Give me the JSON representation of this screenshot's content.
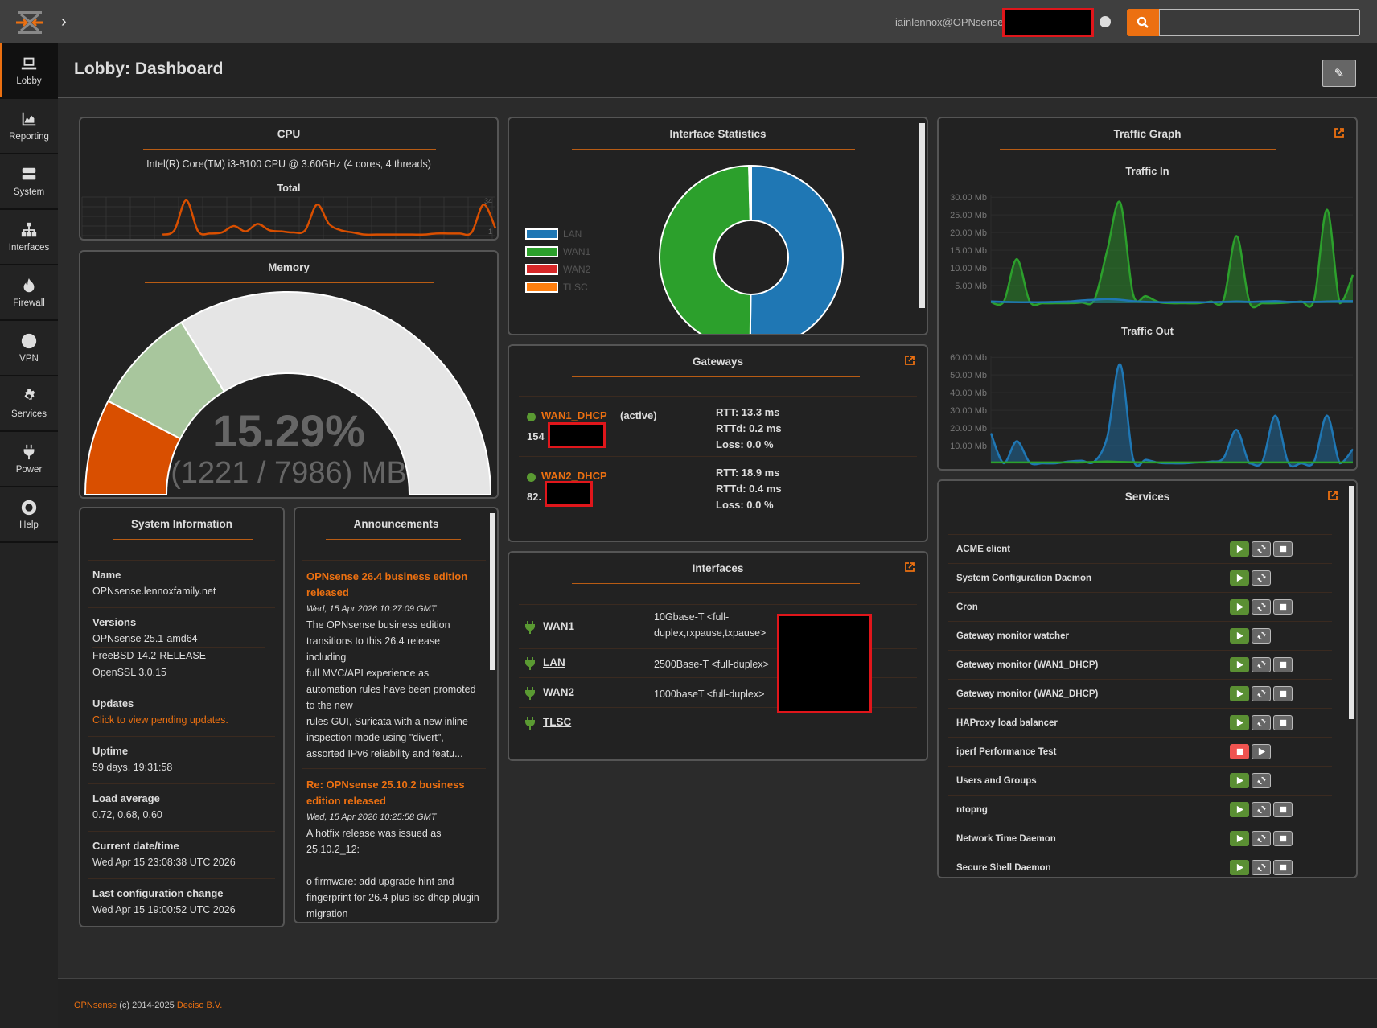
{
  "topbar": {
    "user": "iainlennox@OPNsense",
    "search_value": ""
  },
  "sidebar": {
    "items": [
      {
        "label": "Lobby",
        "icon": "laptop-icon",
        "active": true
      },
      {
        "label": "Reporting",
        "icon": "area-chart-icon"
      },
      {
        "label": "System",
        "icon": "server-icon"
      },
      {
        "label": "Interfaces",
        "icon": "sitemap-icon"
      },
      {
        "label": "Firewall",
        "icon": "fire-icon"
      },
      {
        "label": "VPN",
        "icon": "globe-icon"
      },
      {
        "label": "Services",
        "icon": "gear-icon"
      },
      {
        "label": "Power",
        "icon": "plug-icon"
      },
      {
        "label": "Help",
        "icon": "life-ring-icon"
      }
    ]
  },
  "page": {
    "title": "Lobby: Dashboard"
  },
  "colors": {
    "accent": "#ec7011",
    "lan": "#1f77b4",
    "wan1": "#2ca02c",
    "wan2": "#d62728",
    "tlsc": "#ff7f0e",
    "mem_used": "#d94f00",
    "mem_second": "#a8c69d",
    "mem_free": "#e5e5e5",
    "running": "#5a8f33",
    "stopped": "#ef5350"
  },
  "cpu": {
    "title": "CPU",
    "model": "Intel(R) Core(TM) i3-8100 CPU @ 3.60GHz (4 cores, 4 threads)",
    "graph_title": "Total",
    "max_label": "34",
    "min_label": "1"
  },
  "memory": {
    "title": "Memory",
    "percent": "15.29%",
    "detail": "(1221 / 7986) MB",
    "used_pct": 15.29,
    "second_pct": 17.1
  },
  "sysinfo": {
    "title": "System Information",
    "rows": [
      {
        "label": "Name",
        "values": [
          "OPNsense.lennoxfamily.net"
        ]
      },
      {
        "label": "Versions",
        "values": [
          "OPNsense 25.1-amd64",
          "FreeBSD 14.2-RELEASE",
          "OpenSSL 3.0.15"
        ]
      },
      {
        "label": "Updates",
        "link": "Click to view pending updates."
      },
      {
        "label": "Uptime",
        "values": [
          "59 days, 19:31:58"
        ]
      },
      {
        "label": "Load average",
        "values": [
          "0.72, 0.68, 0.60"
        ]
      },
      {
        "label": "Current date/time",
        "values": [
          "Wed Apr 15 23:08:38 UTC 2026"
        ]
      },
      {
        "label": "Last configuration change",
        "values": [
          "Wed Apr 15 19:00:52 UTC 2026"
        ]
      }
    ]
  },
  "announcements": {
    "title": "Announcements",
    "items": [
      {
        "title": "OPNsense 26.4 business edition released",
        "date": "Wed, 15 Apr 2026 10:27:09 GMT",
        "body": "The OPNsense business edition transitions to this 26.4 release including\nfull MVC/API experience as automation rules have been promoted to the new\nrules GUI, Suricata with a new inline inspection mode using \"divert\", assorted IPv6 reliability and featu..."
      },
      {
        "title": "Re: OPNsense 25.10.2 business edition released",
        "date": "Wed, 15 Apr 2026 10:25:58 GMT",
        "body": "A hotfix release was issued as 25.10.2_12:\n\no firmware: add upgrade hint and fingerprint for 26.4 plus isc-dhcp plugin migration"
      }
    ]
  },
  "interface_stats": {
    "title": "Interface Statistics",
    "legend": [
      "LAN",
      "WAN1",
      "WAN2",
      "TLSC"
    ],
    "chart_data": {
      "type": "pie",
      "donut": true,
      "categories": [
        "LAN",
        "WAN1",
        "WAN2",
        "TLSC"
      ],
      "values": [
        50.2,
        49.4,
        0.4,
        0
      ]
    }
  },
  "gateways": {
    "title": "Gateways",
    "items": [
      {
        "name": "WAN1_DHCP",
        "active_label": "(active)",
        "address_prefix": "154",
        "rtt": "RTT: 13.3 ms",
        "rttd": "RTTd: 0.2 ms",
        "loss": "Loss: 0.0 %"
      },
      {
        "name": "WAN2_DHCP",
        "active_label": "",
        "address_prefix": "82.",
        "rtt": "RTT: 18.9 ms",
        "rttd": "RTTd: 0.4 ms",
        "loss": "Loss: 0.0 %"
      }
    ]
  },
  "interfaces": {
    "title": "Interfaces",
    "items": [
      {
        "name": "WAN1",
        "media": "10Gbase-T <full-duplex,rxpause,txpause>"
      },
      {
        "name": "LAN",
        "media": "2500Base-T <full-duplex>"
      },
      {
        "name": "WAN2",
        "media": "1000baseT <full-duplex>"
      },
      {
        "name": "TLSC",
        "media": ""
      }
    ]
  },
  "traffic": {
    "title": "Traffic Graph",
    "chart_data": [
      {
        "type": "area",
        "title": "Traffic In",
        "yticks": [
          "5.00 Mb",
          "10.00 Mb",
          "15.00 Mb",
          "20.00 Mb",
          "25.00 Mb",
          "30.00 Mb"
        ],
        "ylim": [
          0,
          30.5
        ],
        "series": [
          {
            "color": "#2ca02c",
            "values": [
              0.3,
              0.5,
              12.5,
              0.5,
              0,
              0,
              0,
              0.2,
              1,
              15,
              28.5,
              2.5,
              2,
              0.3,
              0,
              0,
              0,
              0.5,
              1,
              19,
              0.3,
              0,
              0,
              0.2,
              0.5,
              1,
              26.5,
              0,
              8
            ]
          },
          {
            "color": "#1f77b4",
            "values": [
              0.5,
              0.4,
              0.3,
              0.3,
              0.3,
              0.4,
              0.5,
              0.8,
              1,
              1.2,
              1,
              0.6,
              0.4,
              0.3,
              0.3,
              0.3,
              0.3,
              0.3,
              0.4,
              0.5,
              0.4,
              0.5,
              0.6,
              0.4,
              0.4,
              0.4,
              0.5,
              0.6,
              0.6
            ]
          }
        ]
      },
      {
        "type": "area",
        "title": "Traffic Out",
        "yticks": [
          "10.00 Mb",
          "20.00 Mb",
          "30.00 Mb",
          "40.00 Mb",
          "50.00 Mb",
          "60.00 Mb"
        ],
        "ylim": [
          0,
          61
        ],
        "series": [
          {
            "color": "#1f77b4",
            "values": [
              17,
              0,
              12.5,
              0.5,
              0,
              0,
              1,
              1.5,
              1,
              15,
              56,
              2.5,
              2,
              0.3,
              0,
              0,
              0.5,
              1,
              3,
              19,
              0,
              1,
              27,
              0.3,
              0,
              1,
              27,
              0,
              8
            ]
          },
          {
            "color": "#2ca02c",
            "values": [
              0.5,
              0.5,
              0.5,
              0.5,
              0.5,
              0.5,
              0.5,
              0.5,
              0.8,
              1,
              0.8,
              0.6,
              0.5,
              0.5,
              0.5,
              0.5,
              0.5,
              0.5,
              0.5,
              0.5,
              0.5,
              0.5,
              0.5,
              0.5,
              0.5,
              0.5,
              0.5,
              0.5,
              0.5
            ]
          }
        ]
      }
    ]
  },
  "cpu_chart": {
    "type": "line",
    "ylim": [
      1,
      34
    ],
    "values": [
      2,
      6,
      34,
      5,
      3,
      4,
      10,
      5,
      12,
      6,
      5,
      4,
      6,
      30,
      12,
      6,
      4,
      2,
      2,
      2,
      2,
      2,
      2,
      3,
      3,
      3,
      4,
      30,
      8
    ]
  },
  "services": {
    "title": "Services",
    "items": [
      {
        "name": "ACME client",
        "status": "running",
        "actions": [
          "restart",
          "stop"
        ]
      },
      {
        "name": "System Configuration Daemon",
        "status": "running",
        "actions": [
          "restart"
        ]
      },
      {
        "name": "Cron",
        "status": "running",
        "actions": [
          "restart",
          "stop"
        ]
      },
      {
        "name": "Gateway monitor watcher",
        "status": "running",
        "actions": [
          "restart"
        ]
      },
      {
        "name": "Gateway monitor (WAN1_DHCP)",
        "status": "running",
        "actions": [
          "restart",
          "stop"
        ]
      },
      {
        "name": "Gateway monitor (WAN2_DHCP)",
        "status": "running",
        "actions": [
          "restart",
          "stop"
        ]
      },
      {
        "name": "HAProxy load balancer",
        "status": "running",
        "actions": [
          "restart",
          "stop"
        ]
      },
      {
        "name": "iperf Performance Test",
        "status": "stopped",
        "actions": [
          "start"
        ]
      },
      {
        "name": "Users and Groups",
        "status": "running",
        "actions": [
          "restart"
        ]
      },
      {
        "name": "ntopng",
        "status": "running",
        "actions": [
          "restart",
          "stop"
        ]
      },
      {
        "name": "Network Time Daemon",
        "status": "running",
        "actions": [
          "restart",
          "stop"
        ]
      },
      {
        "name": "Secure Shell Daemon",
        "status": "running",
        "actions": [
          "restart",
          "stop"
        ]
      }
    ]
  },
  "footer": {
    "brand": "OPNsense",
    "copyright": " (c) 2014-2025 ",
    "company": "Deciso B.V."
  }
}
